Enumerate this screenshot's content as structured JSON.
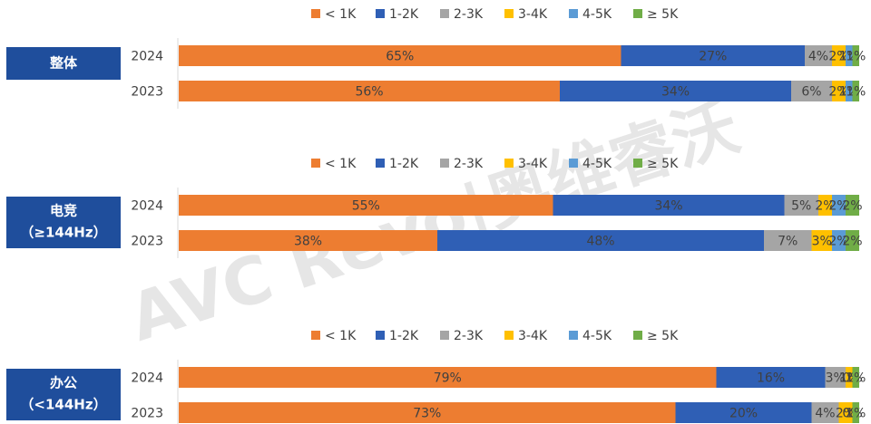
{
  "watermark": "AVC Revo|奥维睿沃",
  "chart_data": [
    {
      "type": "bar",
      "title": "整体",
      "categories": [
        "2024",
        "2023"
      ],
      "xlim": [
        0,
        100
      ],
      "series": [
        {
          "name": "< 1K",
          "color": "#ed7d31",
          "values": [
            65,
            56
          ],
          "value_labels": [
            "65%",
            "56%"
          ]
        },
        {
          "name": "1-2K",
          "color": "#2f5fb5",
          "values": [
            27,
            34
          ],
          "value_labels": [
            "27%",
            "34%"
          ]
        },
        {
          "name": "2-3K",
          "color": "#a5a5a5",
          "values": [
            4,
            6
          ],
          "value_labels": [
            "4%",
            "6%"
          ]
        },
        {
          "name": "3-4K",
          "color": "#ffc000",
          "values": [
            2,
            2
          ],
          "value_labels": [
            "2%",
            "2%"
          ]
        },
        {
          "name": "4-5K",
          "color": "#5b9bd5",
          "values": [
            1,
            1
          ],
          "value_labels": [
            "1%",
            "1%"
          ]
        },
        {
          "name": "≥ 5K",
          "color": "#70ad47",
          "values": [
            1,
            1
          ],
          "value_labels": [
            "1%",
            "1%"
          ]
        }
      ]
    },
    {
      "type": "bar",
      "title": "电竞",
      "subtitle": "（≥144Hz）",
      "categories": [
        "2024",
        "2023"
      ],
      "xlim": [
        0,
        100
      ],
      "series": [
        {
          "name": "< 1K",
          "color": "#ed7d31",
          "values": [
            55,
            38
          ],
          "value_labels": [
            "55%",
            "38%"
          ]
        },
        {
          "name": "1-2K",
          "color": "#2f5fb5",
          "values": [
            34,
            48
          ],
          "value_labels": [
            "34%",
            "48%"
          ]
        },
        {
          "name": "2-3K",
          "color": "#a5a5a5",
          "values": [
            5,
            7
          ],
          "value_labels": [
            "5%",
            "7%"
          ]
        },
        {
          "name": "3-4K",
          "color": "#ffc000",
          "values": [
            2,
            3
          ],
          "value_labels": [
            "2%",
            "3%"
          ]
        },
        {
          "name": "4-5K",
          "color": "#5b9bd5",
          "values": [
            2,
            2
          ],
          "value_labels": [
            "2%",
            "2%"
          ]
        },
        {
          "name": "≥ 5K",
          "color": "#70ad47",
          "values": [
            2,
            2
          ],
          "value_labels": [
            "2%",
            "2%"
          ]
        }
      ]
    },
    {
      "type": "bar",
      "title": "办公",
      "subtitle": "（<144Hz）",
      "categories": [
        "2024",
        "2023"
      ],
      "xlim": [
        0,
        100
      ],
      "series": [
        {
          "name": "< 1K",
          "color": "#ed7d31",
          "values": [
            79,
            73
          ],
          "value_labels": [
            "79%",
            "73%"
          ]
        },
        {
          "name": "1-2K",
          "color": "#2f5fb5",
          "values": [
            16,
            20
          ],
          "value_labels": [
            "16%",
            "20%"
          ]
        },
        {
          "name": "2-3K",
          "color": "#a5a5a5",
          "values": [
            3,
            4
          ],
          "value_labels": [
            "3%",
            "4%"
          ]
        },
        {
          "name": "3-4K",
          "color": "#ffc000",
          "values": [
            1,
            2
          ],
          "value_labels": [
            "1%",
            "2%"
          ]
        },
        {
          "name": "4-5K",
          "color": "#5b9bd5",
          "values": [
            0,
            0
          ],
          "value_labels": [
            "0%",
            "0%"
          ]
        },
        {
          "name": "≥ 5K",
          "color": "#70ad47",
          "values": [
            1,
            1
          ],
          "value_labels": [
            "1%",
            "1%"
          ]
        }
      ]
    }
  ]
}
